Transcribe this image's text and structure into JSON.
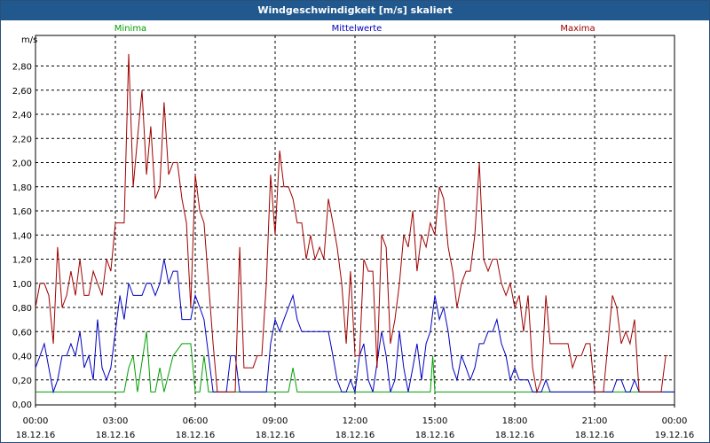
{
  "window": {
    "title": "Windgeschwindigkeit [m/s] skaliert"
  },
  "colors": {
    "titlebar": "#21598f",
    "minima": "#00a000",
    "mittelwerte": "#0000c0",
    "maxima": "#a00000"
  },
  "chart_data": {
    "type": "line",
    "title": "Windgeschwindigkeit [m/s] skaliert",
    "ylabel": "m/s",
    "xlabel": "",
    "ylim": [
      0,
      3.0
    ],
    "xlim_hours": [
      0,
      24
    ],
    "grid": true,
    "legend_placement": "top",
    "y_ticks": [
      "0,00",
      "0,20",
      "0,40",
      "0,60",
      "0,80",
      "1,00",
      "1,20",
      "1,40",
      "1,60",
      "1,80",
      "2,00",
      "2,20",
      "2,40",
      "2,60",
      "2,80"
    ],
    "x_ticks": [
      {
        "time": "00:00",
        "date": "18.12.16"
      },
      {
        "time": "03:00",
        "date": "18.12.16"
      },
      {
        "time": "06:00",
        "date": "18.12.16"
      },
      {
        "time": "09:00",
        "date": "18.12.16"
      },
      {
        "time": "12:00",
        "date": "18.12.16"
      },
      {
        "time": "15:00",
        "date": "18.12.16"
      },
      {
        "time": "18:00",
        "date": "18.12.16"
      },
      {
        "time": "21:00",
        "date": "18.12.16"
      },
      {
        "time": "00:00",
        "date": "19.12.16"
      }
    ],
    "series": [
      {
        "name": "Minima",
        "color": "#00a000",
        "points": [
          [
            0,
            0.1
          ],
          [
            3.33,
            0.1
          ],
          [
            3.5,
            0.3
          ],
          [
            3.67,
            0.4
          ],
          [
            3.83,
            0.1
          ],
          [
            4.17,
            0.6
          ],
          [
            4.33,
            0.1
          ],
          [
            4.5,
            0.1
          ],
          [
            4.67,
            0.3
          ],
          [
            4.83,
            0.1
          ],
          [
            5.17,
            0.4
          ],
          [
            5.5,
            0.5
          ],
          [
            5.83,
            0.5
          ],
          [
            6,
            0.1
          ],
          [
            6.17,
            0.1
          ],
          [
            6.33,
            0.4
          ],
          [
            6.5,
            0.1
          ],
          [
            9.5,
            0.1
          ],
          [
            9.67,
            0.3
          ],
          [
            9.83,
            0.1
          ],
          [
            14.83,
            0.1
          ],
          [
            14.92,
            0.4
          ],
          [
            15.0,
            0.1
          ],
          [
            24,
            0.1
          ]
        ]
      },
      {
        "name": "Mittelwerte",
        "color": "#0000c0",
        "points": [
          [
            0,
            0.3
          ],
          [
            0.17,
            0.4
          ],
          [
            0.33,
            0.5
          ],
          [
            0.5,
            0.3
          ],
          [
            0.67,
            0.1
          ],
          [
            0.83,
            0.2
          ],
          [
            1.0,
            0.4
          ],
          [
            1.17,
            0.4
          ],
          [
            1.33,
            0.5
          ],
          [
            1.5,
            0.4
          ],
          [
            1.67,
            0.6
          ],
          [
            1.83,
            0.3
          ],
          [
            2.0,
            0.4
          ],
          [
            2.17,
            0.2
          ],
          [
            2.33,
            0.7
          ],
          [
            2.5,
            0.3
          ],
          [
            2.67,
            0.2
          ],
          [
            2.83,
            0.3
          ],
          [
            3.0,
            0.6
          ],
          [
            3.17,
            0.9
          ],
          [
            3.33,
            0.7
          ],
          [
            3.5,
            1.0
          ],
          [
            3.67,
            0.9
          ],
          [
            3.83,
            0.9
          ],
          [
            4.0,
            0.9
          ],
          [
            4.17,
            1.0
          ],
          [
            4.33,
            1.0
          ],
          [
            4.5,
            0.9
          ],
          [
            4.67,
            1.0
          ],
          [
            4.83,
            1.2
          ],
          [
            5.0,
            1.0
          ],
          [
            5.17,
            1.1
          ],
          [
            5.33,
            1.1
          ],
          [
            5.5,
            0.7
          ],
          [
            5.67,
            0.7
          ],
          [
            5.83,
            0.7
          ],
          [
            6.0,
            0.9
          ],
          [
            6.17,
            0.8
          ],
          [
            6.33,
            0.7
          ],
          [
            6.5,
            0.4
          ],
          [
            6.67,
            0.1
          ],
          [
            7.17,
            0.1
          ],
          [
            7.33,
            0.4
          ],
          [
            7.5,
            0.4
          ],
          [
            7.67,
            0.1
          ],
          [
            8.67,
            0.1
          ],
          [
            8.83,
            0.5
          ],
          [
            9.0,
            0.7
          ],
          [
            9.17,
            0.6
          ],
          [
            9.33,
            0.7
          ],
          [
            9.5,
            0.8
          ],
          [
            9.67,
            0.9
          ],
          [
            9.83,
            0.7
          ],
          [
            10.0,
            0.6
          ],
          [
            10.33,
            0.6
          ],
          [
            10.5,
            0.6
          ],
          [
            11.0,
            0.6
          ],
          [
            11.17,
            0.4
          ],
          [
            11.33,
            0.2
          ],
          [
            11.5,
            0.1
          ],
          [
            11.67,
            0.1
          ],
          [
            11.83,
            0.2
          ],
          [
            12.0,
            0.1
          ],
          [
            12.17,
            0.4
          ],
          [
            12.33,
            0.5
          ],
          [
            12.5,
            0.2
          ],
          [
            12.67,
            0.1
          ],
          [
            13.0,
            0.6
          ],
          [
            13.17,
            0.4
          ],
          [
            13.33,
            0.1
          ],
          [
            13.5,
            0.2
          ],
          [
            13.67,
            0.6
          ],
          [
            13.83,
            0.3
          ],
          [
            14.0,
            0.1
          ],
          [
            14.17,
            0.3
          ],
          [
            14.33,
            0.5
          ],
          [
            14.5,
            0.2
          ],
          [
            14.67,
            0.5
          ],
          [
            14.83,
            0.6
          ],
          [
            15.0,
            0.9
          ],
          [
            15.17,
            0.7
          ],
          [
            15.33,
            0.8
          ],
          [
            15.5,
            0.6
          ],
          [
            15.67,
            0.3
          ],
          [
            15.83,
            0.2
          ],
          [
            16.0,
            0.4
          ],
          [
            16.17,
            0.3
          ],
          [
            16.33,
            0.2
          ],
          [
            16.5,
            0.3
          ],
          [
            16.67,
            0.5
          ],
          [
            16.83,
            0.5
          ],
          [
            17.0,
            0.6
          ],
          [
            17.17,
            0.6
          ],
          [
            17.33,
            0.7
          ],
          [
            17.5,
            0.5
          ],
          [
            17.67,
            0.4
          ],
          [
            17.83,
            0.2
          ],
          [
            18.0,
            0.3
          ],
          [
            18.17,
            0.2
          ],
          [
            18.5,
            0.2
          ],
          [
            18.67,
            0.1
          ],
          [
            19.0,
            0.1
          ],
          [
            19.17,
            0.2
          ],
          [
            19.33,
            0.1
          ],
          [
            21.67,
            0.1
          ],
          [
            21.83,
            0.2
          ],
          [
            22.0,
            0.2
          ],
          [
            22.17,
            0.1
          ],
          [
            22.33,
            0.1
          ],
          [
            22.5,
            0.2
          ],
          [
            22.67,
            0.1
          ],
          [
            24,
            0.1
          ]
        ]
      },
      {
        "name": "Maxima",
        "color": "#a00000",
        "points": [
          [
            0,
            0.8
          ],
          [
            0.17,
            1.0
          ],
          [
            0.33,
            1.0
          ],
          [
            0.5,
            0.9
          ],
          [
            0.67,
            0.5
          ],
          [
            0.83,
            1.3
          ],
          [
            1.0,
            0.8
          ],
          [
            1.17,
            0.9
          ],
          [
            1.33,
            1.1
          ],
          [
            1.5,
            0.9
          ],
          [
            1.67,
            1.2
          ],
          [
            1.83,
            0.9
          ],
          [
            2.0,
            0.9
          ],
          [
            2.17,
            1.1
          ],
          [
            2.33,
            1.0
          ],
          [
            2.5,
            0.9
          ],
          [
            2.67,
            1.2
          ],
          [
            2.83,
            1.1
          ],
          [
            3.0,
            1.5
          ],
          [
            3.17,
            1.5
          ],
          [
            3.33,
            1.5
          ],
          [
            3.5,
            2.9
          ],
          [
            3.67,
            1.8
          ],
          [
            3.83,
            2.2
          ],
          [
            4.0,
            2.6
          ],
          [
            4.17,
            1.9
          ],
          [
            4.33,
            2.3
          ],
          [
            4.5,
            1.7
          ],
          [
            4.67,
            1.8
          ],
          [
            4.83,
            2.5
          ],
          [
            5.0,
            1.9
          ],
          [
            5.17,
            2.0
          ],
          [
            5.33,
            2.0
          ],
          [
            5.5,
            1.7
          ],
          [
            5.67,
            1.5
          ],
          [
            5.83,
            0.8
          ],
          [
            6.0,
            1.9
          ],
          [
            6.17,
            1.6
          ],
          [
            6.33,
            1.5
          ],
          [
            6.5,
            1.0
          ],
          [
            6.67,
            0.5
          ],
          [
            6.83,
            0.1
          ],
          [
            7.17,
            0.1
          ],
          [
            7.5,
            0.1
          ],
          [
            7.67,
            1.3
          ],
          [
            7.83,
            0.3
          ],
          [
            8.0,
            0.3
          ],
          [
            8.17,
            0.3
          ],
          [
            8.33,
            0.4
          ],
          [
            8.5,
            0.4
          ],
          [
            8.67,
            1.0
          ],
          [
            8.83,
            1.9
          ],
          [
            9.0,
            1.4
          ],
          [
            9.17,
            2.1
          ],
          [
            9.33,
            1.8
          ],
          [
            9.5,
            1.8
          ],
          [
            9.67,
            1.7
          ],
          [
            9.83,
            1.5
          ],
          [
            10.0,
            1.5
          ],
          [
            10.17,
            1.2
          ],
          [
            10.33,
            1.4
          ],
          [
            10.5,
            1.2
          ],
          [
            10.67,
            1.3
          ],
          [
            10.83,
            1.2
          ],
          [
            11.0,
            1.7
          ],
          [
            11.17,
            1.5
          ],
          [
            11.33,
            1.3
          ],
          [
            11.5,
            1.0
          ],
          [
            11.67,
            0.5
          ],
          [
            11.83,
            1.1
          ],
          [
            12.0,
            0.4
          ],
          [
            12.17,
            0.4
          ],
          [
            12.33,
            1.2
          ],
          [
            12.5,
            1.1
          ],
          [
            12.67,
            1.1
          ],
          [
            12.83,
            0.3
          ],
          [
            13.0,
            1.4
          ],
          [
            13.17,
            1.3
          ],
          [
            13.33,
            0.5
          ],
          [
            13.5,
            0.7
          ],
          [
            13.67,
            1.0
          ],
          [
            13.83,
            1.4
          ],
          [
            14.0,
            1.3
          ],
          [
            14.17,
            1.6
          ],
          [
            14.33,
            1.1
          ],
          [
            14.5,
            1.4
          ],
          [
            14.67,
            1.3
          ],
          [
            14.83,
            1.5
          ],
          [
            15.0,
            1.4
          ],
          [
            15.17,
            1.8
          ],
          [
            15.33,
            1.7
          ],
          [
            15.5,
            1.3
          ],
          [
            15.67,
            1.1
          ],
          [
            15.83,
            0.8
          ],
          [
            16.0,
            1.0
          ],
          [
            16.17,
            1.1
          ],
          [
            16.33,
            1.1
          ],
          [
            16.5,
            1.4
          ],
          [
            16.67,
            2.0
          ],
          [
            16.83,
            1.2
          ],
          [
            17.0,
            1.1
          ],
          [
            17.17,
            1.2
          ],
          [
            17.33,
            1.2
          ],
          [
            17.5,
            1.0
          ],
          [
            17.67,
            0.9
          ],
          [
            17.83,
            1.0
          ],
          [
            18.0,
            0.8
          ],
          [
            18.17,
            0.9
          ],
          [
            18.33,
            0.6
          ],
          [
            18.5,
            0.9
          ],
          [
            18.67,
            0.3
          ],
          [
            18.83,
            0.1
          ],
          [
            19.0,
            0.2
          ],
          [
            19.17,
            0.9
          ],
          [
            19.33,
            0.5
          ],
          [
            19.5,
            0.5
          ],
          [
            20.0,
            0.5
          ],
          [
            20.17,
            0.3
          ],
          [
            20.33,
            0.4
          ],
          [
            20.5,
            0.4
          ],
          [
            20.67,
            0.5
          ],
          [
            20.83,
            0.5
          ],
          [
            21.0,
            0.1
          ],
          [
            21.33,
            0.1
          ],
          [
            21.67,
            0.9
          ],
          [
            21.83,
            0.8
          ],
          [
            22.0,
            0.5
          ],
          [
            22.17,
            0.6
          ],
          [
            22.33,
            0.5
          ],
          [
            22.5,
            0.7
          ],
          [
            22.67,
            0.1
          ],
          [
            23.5,
            0.1
          ],
          [
            23.67,
            0.4
          ],
          [
            23.75,
            0.4
          ]
        ]
      }
    ]
  }
}
